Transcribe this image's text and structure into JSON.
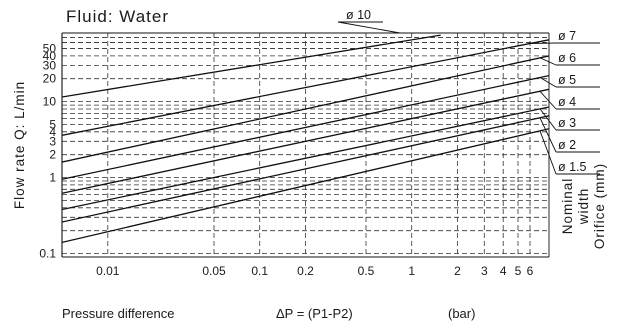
{
  "chart_data": {
    "type": "line",
    "title": "Fluid: Water",
    "ylabel": "Flow rate Q: L/min",
    "xlabel_parts": [
      "Pressure difference",
      "ΔP = (P1-P2)",
      "(bar)"
    ],
    "right_label_lines": [
      "Nominal",
      "width",
      "Orifice  (mm)"
    ],
    "x_scale": "log",
    "y_scale": "log",
    "xlim": [
      0.005,
      8
    ],
    "ylim": [
      0.09,
      80
    ],
    "x_ticks": [
      0.01,
      0.05,
      0.1,
      0.2,
      0.5,
      1,
      2,
      3,
      4,
      5,
      6
    ],
    "x_tick_labels": [
      "0.01",
      "0.05",
      "0.1",
      "0.2",
      "0.5",
      "1",
      "2",
      "3",
      "4",
      "5",
      "6"
    ],
    "y_ticks": [
      0.1,
      1,
      2,
      3,
      4,
      5,
      10,
      20,
      30,
      40,
      50
    ],
    "y_tick_labels": [
      "0.1",
      "1",
      "2",
      "3",
      "4",
      "5",
      "10",
      "20",
      "30",
      "40",
      "50"
    ],
    "grid": true,
    "series": [
      {
        "name": "ø 10",
        "x": [
          0.005,
          1.55
        ],
        "y": [
          11.5,
          75
        ]
      },
      {
        "name": "ø 7",
        "x": [
          0.005,
          8
        ],
        "y": [
          3.6,
          65
        ]
      },
      {
        "name": "ø 6",
        "x": [
          0.005,
          8
        ],
        "y": [
          1.6,
          40
        ]
      },
      {
        "name": "ø 5",
        "x": [
          0.005,
          8
        ],
        "y": [
          0.95,
          22
        ]
      },
      {
        "name": "ø 4",
        "x": [
          0.005,
          8
        ],
        "y": [
          0.62,
          14.5
        ]
      },
      {
        "name": "ø 3",
        "x": [
          0.005,
          8
        ],
        "y": [
          0.38,
          8.5
        ]
      },
      {
        "name": "ø 2",
        "x": [
          0.005,
          8
        ],
        "y": [
          0.26,
          6.5
        ]
      },
      {
        "name": "ø 1.5",
        "x": [
          0.005,
          8
        ],
        "y": [
          0.14,
          4.4
        ]
      }
    ]
  }
}
